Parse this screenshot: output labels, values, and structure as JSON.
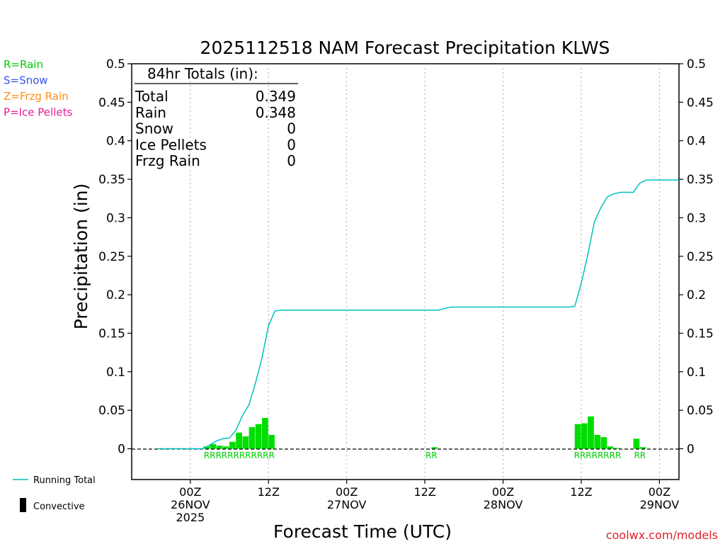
{
  "chart_data": {
    "type": "bar",
    "title": "2025112518 NAM Forecast Precipitation KLWS",
    "ylabel": "Precipitation (in)",
    "xlabel": "Forecast Time (UTC)",
    "ylim": [
      -0.04,
      0.5
    ],
    "xlim_hours": [
      -4.5,
      37.5
    ],
    "y_ticks": [
      "0",
      "0.05",
      "0.1",
      "0.15",
      "0.2",
      "0.25",
      "0.3",
      "0.35",
      "0.4",
      "0.45",
      "0.5"
    ],
    "y_tick_values": [
      0,
      0.05,
      0.1,
      0.15,
      0.2,
      0.25,
      0.3,
      0.35,
      0.4,
      0.45,
      0.5
    ],
    "x_ticks": [
      {
        "hour": 0,
        "l1": "00Z",
        "l2": "26NOV",
        "l3": "2025"
      },
      {
        "hour": 6,
        "l1": "12Z",
        "l2": "",
        "l3": ""
      },
      {
        "hour": 12,
        "l1": "00Z",
        "l2": "27NOV",
        "l3": ""
      },
      {
        "hour": 18,
        "l1": "12Z",
        "l2": "",
        "l3": ""
      },
      {
        "hour": 24,
        "l1": "00Z",
        "l2": "28NOV",
        "l3": ""
      },
      {
        "hour": 30,
        "l1": "12Z",
        "l2": "",
        "l3": ""
      },
      {
        "hour": 36,
        "l1": "00Z",
        "l2": "29NOV",
        "l3": ""
      }
    ],
    "bar_width_hours": 0.5,
    "bars": [
      {
        "hour": 1.25,
        "value": 0.003
      },
      {
        "hour": 1.75,
        "value": 0.006
      },
      {
        "hour": 2.25,
        "value": 0.004
      },
      {
        "hour": 2.75,
        "value": 0.003
      },
      {
        "hour": 3.25,
        "value": 0.009
      },
      {
        "hour": 3.75,
        "value": 0.021
      },
      {
        "hour": 4.25,
        "value": 0.016
      },
      {
        "hour": 4.75,
        "value": 0.028
      },
      {
        "hour": 5.25,
        "value": 0.032
      },
      {
        "hour": 5.75,
        "value": 0.04
      },
      {
        "hour": 6.25,
        "value": 0.018
      },
      {
        "hour": 18.75,
        "value": 0.002
      },
      {
        "hour": 29.75,
        "value": 0.032
      },
      {
        "hour": 30.25,
        "value": 0.033
      },
      {
        "hour": 30.75,
        "value": 0.042
      },
      {
        "hour": 31.25,
        "value": 0.018
      },
      {
        "hour": 31.75,
        "value": 0.015
      },
      {
        "hour": 32.25,
        "value": 0.003
      },
      {
        "hour": 32.75,
        "value": 0.001
      },
      {
        "hour": 34.25,
        "value": 0.013
      },
      {
        "hour": 34.75,
        "value": 0.002
      }
    ],
    "running_total": [
      [
        -2.5,
        0
      ],
      [
        0,
        0
      ],
      [
        1,
        0
      ],
      [
        1.5,
        0.005
      ],
      [
        2,
        0.01
      ],
      [
        2.5,
        0.013
      ],
      [
        3,
        0.014
      ],
      [
        3.5,
        0.024
      ],
      [
        4,
        0.043
      ],
      [
        4.5,
        0.057
      ],
      [
        5,
        0.085
      ],
      [
        5.5,
        0.118
      ],
      [
        6,
        0.16
      ],
      [
        6.5,
        0.179
      ],
      [
        7,
        0.18
      ],
      [
        19,
        0.18
      ],
      [
        19.5,
        0.182
      ],
      [
        20,
        0.184
      ],
      [
        29,
        0.184
      ],
      [
        29.5,
        0.185
      ],
      [
        30,
        0.215
      ],
      [
        30.5,
        0.252
      ],
      [
        31,
        0.294
      ],
      [
        31.5,
        0.313
      ],
      [
        32,
        0.327
      ],
      [
        32.5,
        0.331
      ],
      [
        33,
        0.333
      ],
      [
        34,
        0.333
      ],
      [
        34.5,
        0.345
      ],
      [
        35,
        0.349
      ],
      [
        37.5,
        0.349
      ]
    ],
    "precip_type_markers": [
      {
        "text": "RRRRRRRRRRRR",
        "hour": 3.75
      },
      {
        "text": "RR",
        "hour": 18.5
      },
      {
        "text": "RRRRRRRR",
        "hour": 31.25
      },
      {
        "text": "RR",
        "hour": 34.5
      }
    ],
    "totals_box": {
      "heading": "84hr Totals (in):",
      "rows": [
        {
          "label": "Total",
          "value": "0.349"
        },
        {
          "label": "Rain",
          "value": "0.348"
        },
        {
          "label": "Snow",
          "value": "0"
        },
        {
          "label": "Ice Pellets",
          "value": "0"
        },
        {
          "label": "Frzg Rain",
          "value": "0"
        }
      ]
    },
    "type_legend": [
      {
        "text": "R=Rain",
        "color": "#00cc00"
      },
      {
        "text": "S=Snow",
        "color": "#3355ee"
      },
      {
        "text": "Z=Frzg Rain",
        "color": "#ff8c1a"
      },
      {
        "text": "P=Ice Pellets",
        "color": "#ee1a99"
      }
    ],
    "series_legend": [
      {
        "text": "Running Total",
        "color": "#00c0c0"
      },
      {
        "text": "Convective",
        "color": "#000000"
      }
    ],
    "credit": "coolwx.com/models",
    "colors": {
      "bar": "#00dd00",
      "line": "#00c0c0",
      "marker": "#00cc00",
      "credit": "#e0202a"
    }
  }
}
